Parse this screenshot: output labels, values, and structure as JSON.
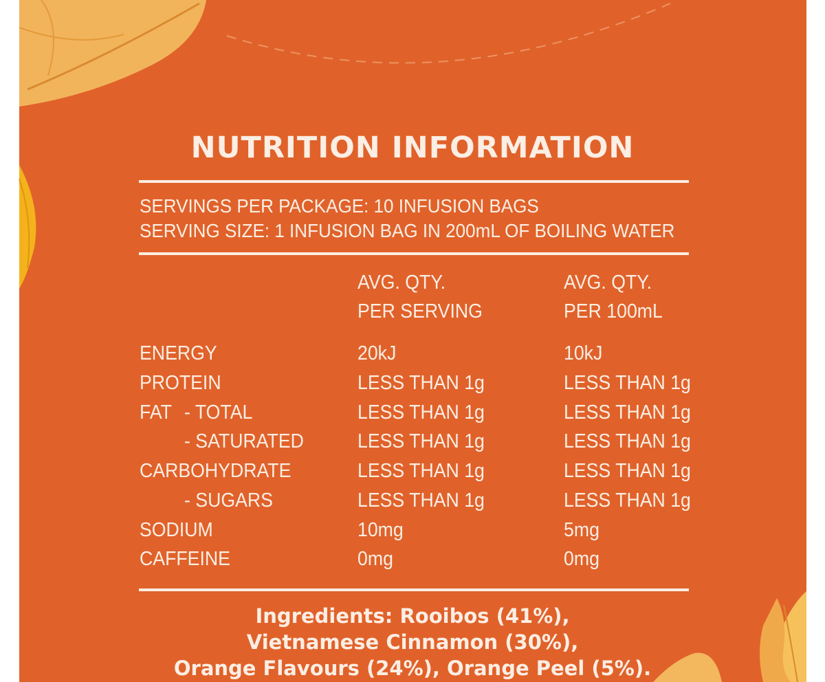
{
  "title": "NUTRITION INFORMATION",
  "servings": {
    "per_package": "SERVINGS PER PACKAGE: 10 INFUSION BAGS",
    "serving_size": "SERVING SIZE: 1 INFUSION BAG IN 200mL OF BOILING WATER"
  },
  "headers": {
    "col1_line1": "AVG. QTY.",
    "col1_line2": "PER SERVING",
    "col2_line1": "AVG. QTY.",
    "col2_line2": "PER 100mL"
  },
  "rows": [
    {
      "label": "ENERGY",
      "sub": "",
      "per_serving": "20kJ",
      "per_100ml": "10kJ"
    },
    {
      "label": "PROTEIN",
      "sub": "",
      "per_serving": "LESS THAN 1g",
      "per_100ml": "LESS THAN 1g"
    },
    {
      "label": "FAT",
      "sub": "- TOTAL",
      "per_serving": "LESS THAN 1g",
      "per_100ml": "LESS THAN 1g"
    },
    {
      "label": "",
      "sub": "- SATURATED",
      "per_serving": "LESS THAN 1g",
      "per_100ml": "LESS THAN 1g"
    },
    {
      "label": "CARBOHYDRATE",
      "sub": "",
      "per_serving": "LESS THAN 1g",
      "per_100ml": "LESS THAN 1g"
    },
    {
      "label": "",
      "sub": "- SUGARS",
      "per_serving": "LESS THAN 1g",
      "per_100ml": "LESS THAN 1g"
    },
    {
      "label": "SODIUM",
      "sub": "",
      "per_serving": "10mg",
      "per_100ml": "5mg"
    },
    {
      "label": "CAFFEINE",
      "sub": "",
      "per_serving": "0mg",
      "per_100ml": "0mg"
    }
  ],
  "ingredients": [
    "Ingredients: Rooibos (41%),",
    "Vietnamese Cinnamon (30%),",
    "Orange Flavours (24%), Orange Peel (5%)."
  ],
  "colors": {
    "panel": "#e0622a",
    "text": "#fbeee4"
  }
}
